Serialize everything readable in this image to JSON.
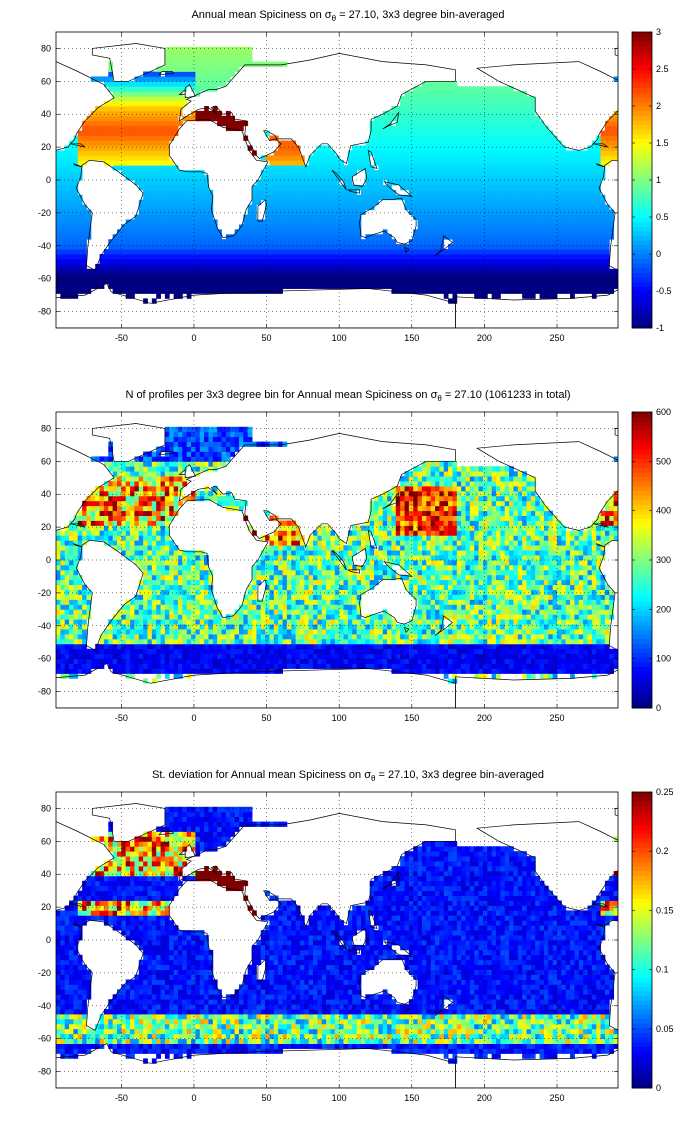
{
  "chart_data": [
    {
      "type": "heatmap",
      "title": "Annual mean Spiciness on σθ = 27.10, 3x3 degree bin-averaged",
      "title_parts": {
        "pre": "Annual mean Spiciness on σ",
        "sub": "θ",
        "post": " = 27.10, 3x3 degree bin-averaged"
      },
      "xlim": [
        -95,
        292
      ],
      "ylim": [
        -90,
        90
      ],
      "xticks": [
        -50,
        0,
        50,
        100,
        150,
        200,
        250
      ],
      "yticks": [
        80,
        60,
        40,
        20,
        0,
        -20,
        -40,
        -60,
        -80
      ],
      "colorbar": {
        "min": -1,
        "max": 3,
        "ticks": [
          "3",
          "2.5",
          "2",
          "1.5",
          "1",
          "0.5",
          "0",
          "-0.5",
          "-1"
        ]
      },
      "grid": true,
      "field": "spiciness"
    },
    {
      "type": "heatmap",
      "title": "N of profiles per 3x3 degree bin for Annual mean Spiciness on σθ = 27.10 (1061233 in total)",
      "title_parts": {
        "pre": "N of profiles per 3x3 degree bin for Annual mean Spiciness on σ",
        "sub": "θ",
        "post": " = 27.10 (1061233 in total)"
      },
      "xlim": [
        -95,
        292
      ],
      "ylim": [
        -90,
        90
      ],
      "xticks": [
        -50,
        0,
        50,
        100,
        150,
        200,
        250
      ],
      "yticks": [
        80,
        60,
        40,
        20,
        0,
        -20,
        -40,
        -60,
        -80
      ],
      "colorbar": {
        "min": 0,
        "max": 600,
        "ticks": [
          "600",
          "500",
          "400",
          "300",
          "200",
          "100",
          "0"
        ]
      },
      "grid": true,
      "field": "count"
    },
    {
      "type": "heatmap",
      "title": "St. deviation for Annual mean Spiciness on σθ = 27.10, 3x3 degree bin-averaged",
      "title_parts": {
        "pre": "St. deviation for Annual mean Spiciness on σ",
        "sub": "θ",
        "post": " = 27.10, 3x3 degree bin-averaged"
      },
      "xlim": [
        -95,
        292
      ],
      "ylim": [
        -90,
        90
      ],
      "xticks": [
        -50,
        0,
        50,
        100,
        150,
        200,
        250
      ],
      "yticks": [
        80,
        60,
        40,
        20,
        0,
        -20,
        -40,
        -60,
        -80
      ],
      "colorbar": {
        "min": 0,
        "max": 0.25,
        "ticks": [
          "0.25",
          "0.2",
          "0.15",
          "0.1",
          "0.05",
          "0"
        ]
      },
      "grid": true,
      "field": "stdev"
    }
  ]
}
